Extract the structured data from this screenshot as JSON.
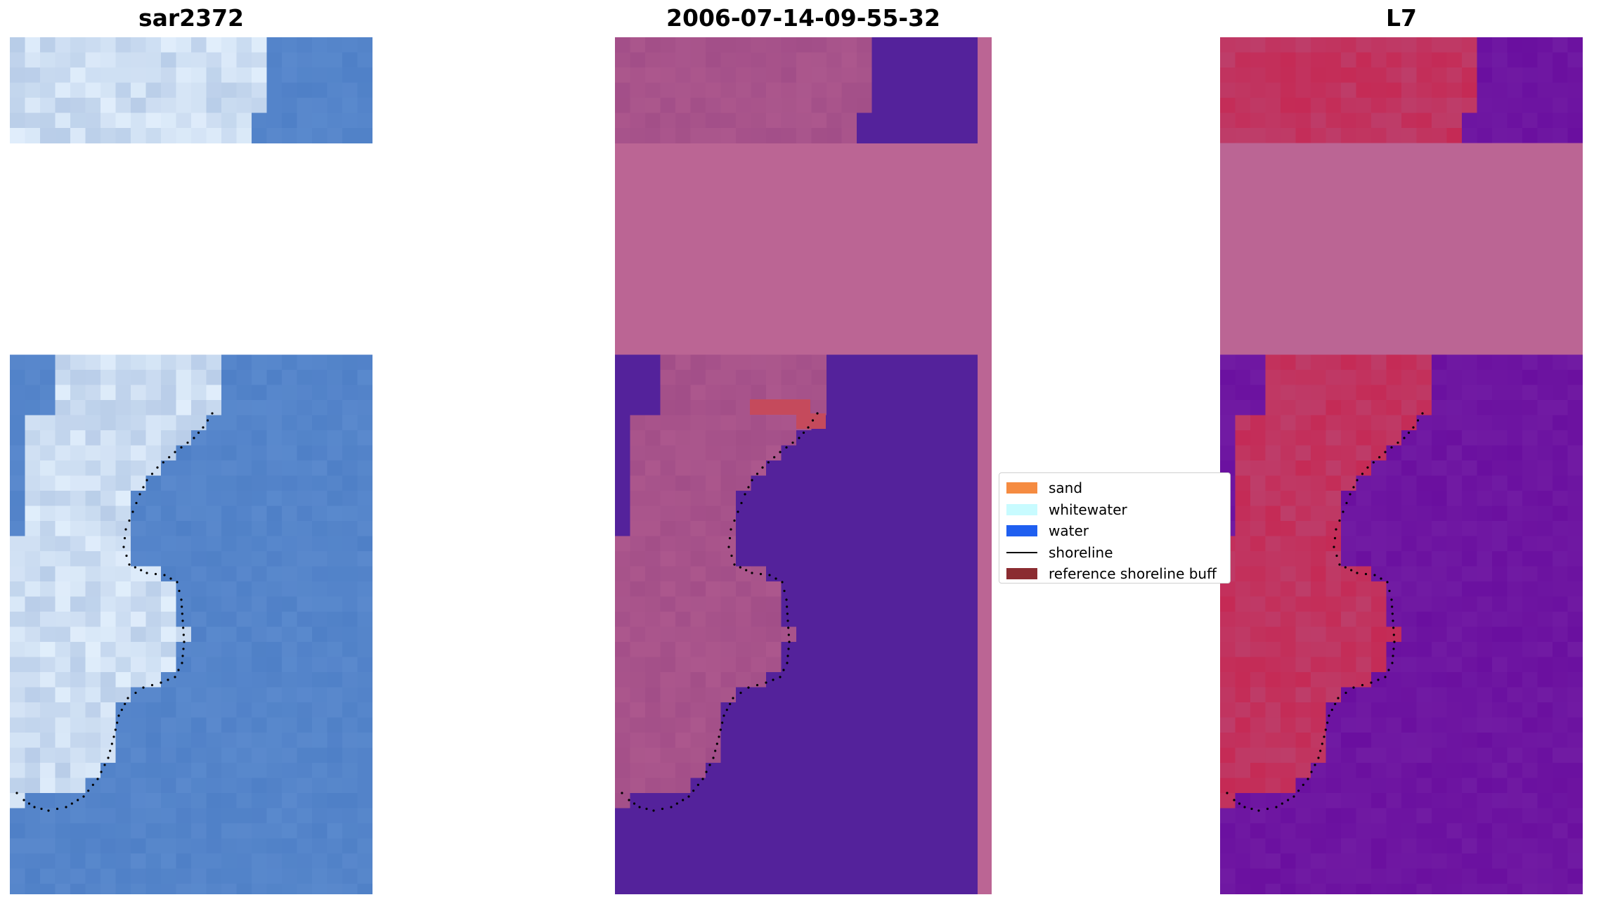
{
  "panels": [
    {
      "title": "sar2372"
    },
    {
      "title": "2006-07-14-09-55-32"
    },
    {
      "title": "L7"
    }
  ],
  "legend": {
    "items": [
      {
        "label": "sand",
        "color": "#f58b41",
        "kind": "patch"
      },
      {
        "label": "whitewater",
        "color": "#c8fbff",
        "kind": "patch"
      },
      {
        "label": "water",
        "color": "#1f5ff0",
        "kind": "patch"
      },
      {
        "label": "shoreline",
        "color": "#000000",
        "kind": "line"
      },
      {
        "label": "reference shoreline buff",
        "color": "#8b2c31",
        "kind": "patch"
      }
    ]
  },
  "colors": {
    "cloud_mask": "#bb6594",
    "water_class": "#54229b",
    "land_class": "#a24e88",
    "mndwi_land": "#c52a55",
    "mndwi_water": "#6a0f9f",
    "rgb_water": "#4f80c7",
    "rgb_whitewater": "#e8f4ff",
    "shoreline_dots": "#000000"
  }
}
